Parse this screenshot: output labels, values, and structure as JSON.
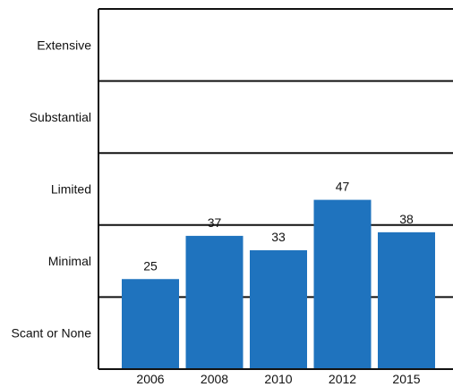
{
  "chart_data": {
    "type": "bar",
    "title": "",
    "xlabel": "",
    "ylabel": "",
    "categories": [
      "2006",
      "2008",
      "2010",
      "2012",
      "2015"
    ],
    "values": [
      25,
      37,
      33,
      47,
      38
    ],
    "ylim": [
      0,
      100
    ],
    "bands": [
      {
        "label": "Scant or None",
        "from": 0,
        "to": 20
      },
      {
        "label": "Minimal",
        "from": 20,
        "to": 40
      },
      {
        "label": "Limited",
        "from": 40,
        "to": 60
      },
      {
        "label": "Substantial",
        "from": 60,
        "to": 80
      },
      {
        "label": "Extensive",
        "from": 80,
        "to": 100
      }
    ],
    "bar_color": "#1f73be",
    "grid": true,
    "legend": "none"
  }
}
